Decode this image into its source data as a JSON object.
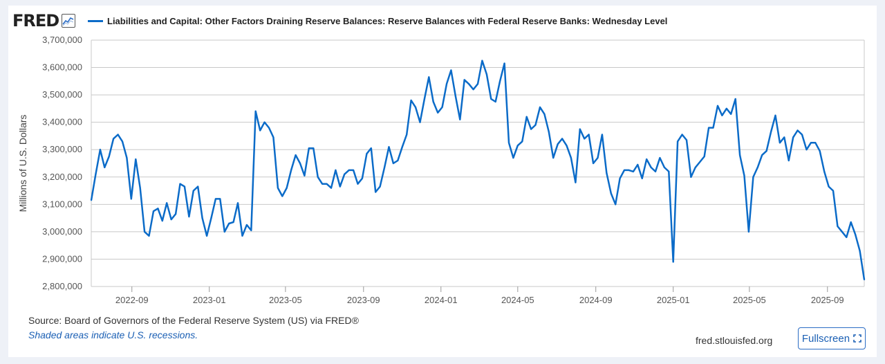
{
  "header": {
    "logo_text": "FRED",
    "legend_label": "Liabilities and Capital: Other Factors Draining Reserve Balances: Reserve Balances with Federal Reserve Banks: Wednesday Level"
  },
  "footer": {
    "source": "Source: Board of Governors of the Federal Reserve System (US) via FRED®",
    "note": "Shaded areas indicate U.S. recessions.",
    "site": "fred.stlouisfed.org",
    "fullscreen_label": "Fullscreen"
  },
  "colors": {
    "series": "#0b6bc8",
    "grid": "#c8c8c8",
    "accent": "#1a5fb4"
  },
  "icons": {
    "logo": "chart-line-icon",
    "fullscreen": "expand-icon"
  },
  "chart_data": {
    "type": "line",
    "ylabel": "Millions of U.S. Dollars",
    "ylim": [
      2800000,
      3700000
    ],
    "y_ticks": [
      2800000,
      2900000,
      3000000,
      3100000,
      3200000,
      3300000,
      3400000,
      3500000,
      3600000,
      3700000
    ],
    "y_tick_labels": [
      "2,800,000",
      "2,900,000",
      "3,000,000",
      "3,100,000",
      "3,200,000",
      "3,300,000",
      "3,400,000",
      "3,500,000",
      "3,600,000",
      "3,700,000"
    ],
    "x_ticks": [
      "2022-09",
      "2023-01",
      "2023-05",
      "2023-09",
      "2024-01",
      "2024-05",
      "2024-09",
      "2025-01",
      "2025-05",
      "2025-09"
    ],
    "xlim": [
      "2022-06-29",
      "2025-10-29"
    ],
    "grid": true,
    "series": [
      {
        "name": "Liabilities and Capital: Other Factors Draining Reserve Balances: Reserve Balances with Federal Reserve Banks: Wednesday Level",
        "x": [
          "2022-06-29",
          "2022-07-06",
          "2022-07-13",
          "2022-07-20",
          "2022-07-27",
          "2022-08-03",
          "2022-08-10",
          "2022-08-17",
          "2022-08-24",
          "2022-08-31",
          "2022-09-07",
          "2022-09-14",
          "2022-09-21",
          "2022-09-28",
          "2022-10-05",
          "2022-10-12",
          "2022-10-19",
          "2022-10-26",
          "2022-11-02",
          "2022-11-09",
          "2022-11-16",
          "2022-11-23",
          "2022-11-30",
          "2022-12-07",
          "2022-12-14",
          "2022-12-21",
          "2022-12-28",
          "2023-01-04",
          "2023-01-11",
          "2023-01-18",
          "2023-01-25",
          "2023-02-01",
          "2023-02-08",
          "2023-02-15",
          "2023-02-22",
          "2023-03-01",
          "2023-03-08",
          "2023-03-15",
          "2023-03-22",
          "2023-03-29",
          "2023-04-05",
          "2023-04-12",
          "2023-04-19",
          "2023-04-26",
          "2023-05-03",
          "2023-05-10",
          "2023-05-17",
          "2023-05-24",
          "2023-05-31",
          "2023-06-07",
          "2023-06-14",
          "2023-06-21",
          "2023-06-28",
          "2023-07-05",
          "2023-07-12",
          "2023-07-19",
          "2023-07-26",
          "2023-08-02",
          "2023-08-09",
          "2023-08-16",
          "2023-08-23",
          "2023-08-30",
          "2023-09-06",
          "2023-09-13",
          "2023-09-20",
          "2023-09-27",
          "2023-10-04",
          "2023-10-11",
          "2023-10-18",
          "2023-10-25",
          "2023-11-01",
          "2023-11-08",
          "2023-11-15",
          "2023-11-22",
          "2023-11-29",
          "2023-12-06",
          "2023-12-13",
          "2023-12-20",
          "2023-12-27",
          "2024-01-03",
          "2024-01-10",
          "2024-01-17",
          "2024-01-24",
          "2024-01-31",
          "2024-02-07",
          "2024-02-14",
          "2024-02-21",
          "2024-02-28",
          "2024-03-06",
          "2024-03-13",
          "2024-03-20",
          "2024-03-27",
          "2024-04-03",
          "2024-04-10",
          "2024-04-17",
          "2024-04-24",
          "2024-05-01",
          "2024-05-08",
          "2024-05-15",
          "2024-05-22",
          "2024-05-29",
          "2024-06-05",
          "2024-06-12",
          "2024-06-19",
          "2024-06-26",
          "2024-07-03",
          "2024-07-10",
          "2024-07-17",
          "2024-07-24",
          "2024-07-31",
          "2024-08-07",
          "2024-08-14",
          "2024-08-21",
          "2024-08-28",
          "2024-09-04",
          "2024-09-11",
          "2024-09-18",
          "2024-09-25",
          "2024-10-02",
          "2024-10-09",
          "2024-10-16",
          "2024-10-23",
          "2024-10-30",
          "2024-11-06",
          "2024-11-13",
          "2024-11-20",
          "2024-11-27",
          "2024-12-04",
          "2024-12-11",
          "2024-12-18",
          "2024-12-25",
          "2025-01-01",
          "2025-01-08",
          "2025-01-15",
          "2025-01-22",
          "2025-01-29",
          "2025-02-05",
          "2025-02-12",
          "2025-02-19",
          "2025-02-26",
          "2025-03-05",
          "2025-03-12",
          "2025-03-19",
          "2025-03-26",
          "2025-04-02",
          "2025-04-09",
          "2025-04-16",
          "2025-04-23",
          "2025-04-30",
          "2025-05-07",
          "2025-05-14",
          "2025-05-21",
          "2025-05-28",
          "2025-06-04",
          "2025-06-11",
          "2025-06-18",
          "2025-06-25",
          "2025-07-02",
          "2025-07-09",
          "2025-07-16",
          "2025-07-23",
          "2025-07-30",
          "2025-08-06",
          "2025-08-13",
          "2025-08-20",
          "2025-08-27",
          "2025-09-03",
          "2025-09-10",
          "2025-09-17",
          "2025-09-24",
          "2025-10-01",
          "2025-10-08",
          "2025-10-15",
          "2025-10-22",
          "2025-10-29"
        ],
        "values": [
          3115000,
          3210000,
          3300000,
          3235000,
          3275000,
          3340000,
          3355000,
          3330000,
          3270000,
          3120000,
          3265000,
          3160000,
          3000000,
          2985000,
          3075000,
          3085000,
          3040000,
          3105000,
          3045000,
          3065000,
          3175000,
          3165000,
          3055000,
          3150000,
          3165000,
          3050000,
          2985000,
          3050000,
          3120000,
          3120000,
          3000000,
          3030000,
          3035000,
          3105000,
          2985000,
          3025000,
          3005000,
          3440000,
          3370000,
          3400000,
          3380000,
          3345000,
          3160000,
          3130000,
          3160000,
          3225000,
          3280000,
          3250000,
          3205000,
          3305000,
          3305000,
          3200000,
          3175000,
          3175000,
          3160000,
          3225000,
          3165000,
          3210000,
          3225000,
          3225000,
          3175000,
          3195000,
          3285000,
          3305000,
          3145000,
          3165000,
          3235000,
          3310000,
          3250000,
          3260000,
          3310000,
          3355000,
          3480000,
          3455000,
          3400000,
          3485000,
          3565000,
          3475000,
          3435000,
          3455000,
          3540000,
          3590000,
          3495000,
          3410000,
          3555000,
          3540000,
          3520000,
          3540000,
          3625000,
          3575000,
          3485000,
          3475000,
          3550000,
          3615000,
          3325000,
          3270000,
          3315000,
          3330000,
          3420000,
          3375000,
          3390000,
          3455000,
          3430000,
          3365000,
          3270000,
          3320000,
          3340000,
          3315000,
          3270000,
          3180000,
          3375000,
          3340000,
          3355000,
          3250000,
          3270000,
          3355000,
          3215000,
          3140000,
          3100000,
          3195000,
          3225000,
          3225000,
          3220000,
          3245000,
          3195000,
          3265000,
          3235000,
          3220000,
          3270000,
          3235000,
          3220000,
          2890000,
          3330000,
          3355000,
          3335000,
          3200000,
          3235000,
          3255000,
          3275000,
          3380000,
          3380000,
          3460000,
          3425000,
          3450000,
          3430000,
          3485000,
          3280000,
          3205000,
          3000000,
          3200000,
          3235000,
          3280000,
          3295000,
          3365000,
          3425000,
          3325000,
          3345000,
          3260000,
          3345000,
          3370000,
          3355000,
          3300000,
          3325000,
          3325000,
          3295000,
          3220000,
          3165000,
          3150000,
          3020000,
          3000000,
          2980000,
          3035000,
          2990000,
          2930000,
          2825000
        ]
      }
    ]
  }
}
